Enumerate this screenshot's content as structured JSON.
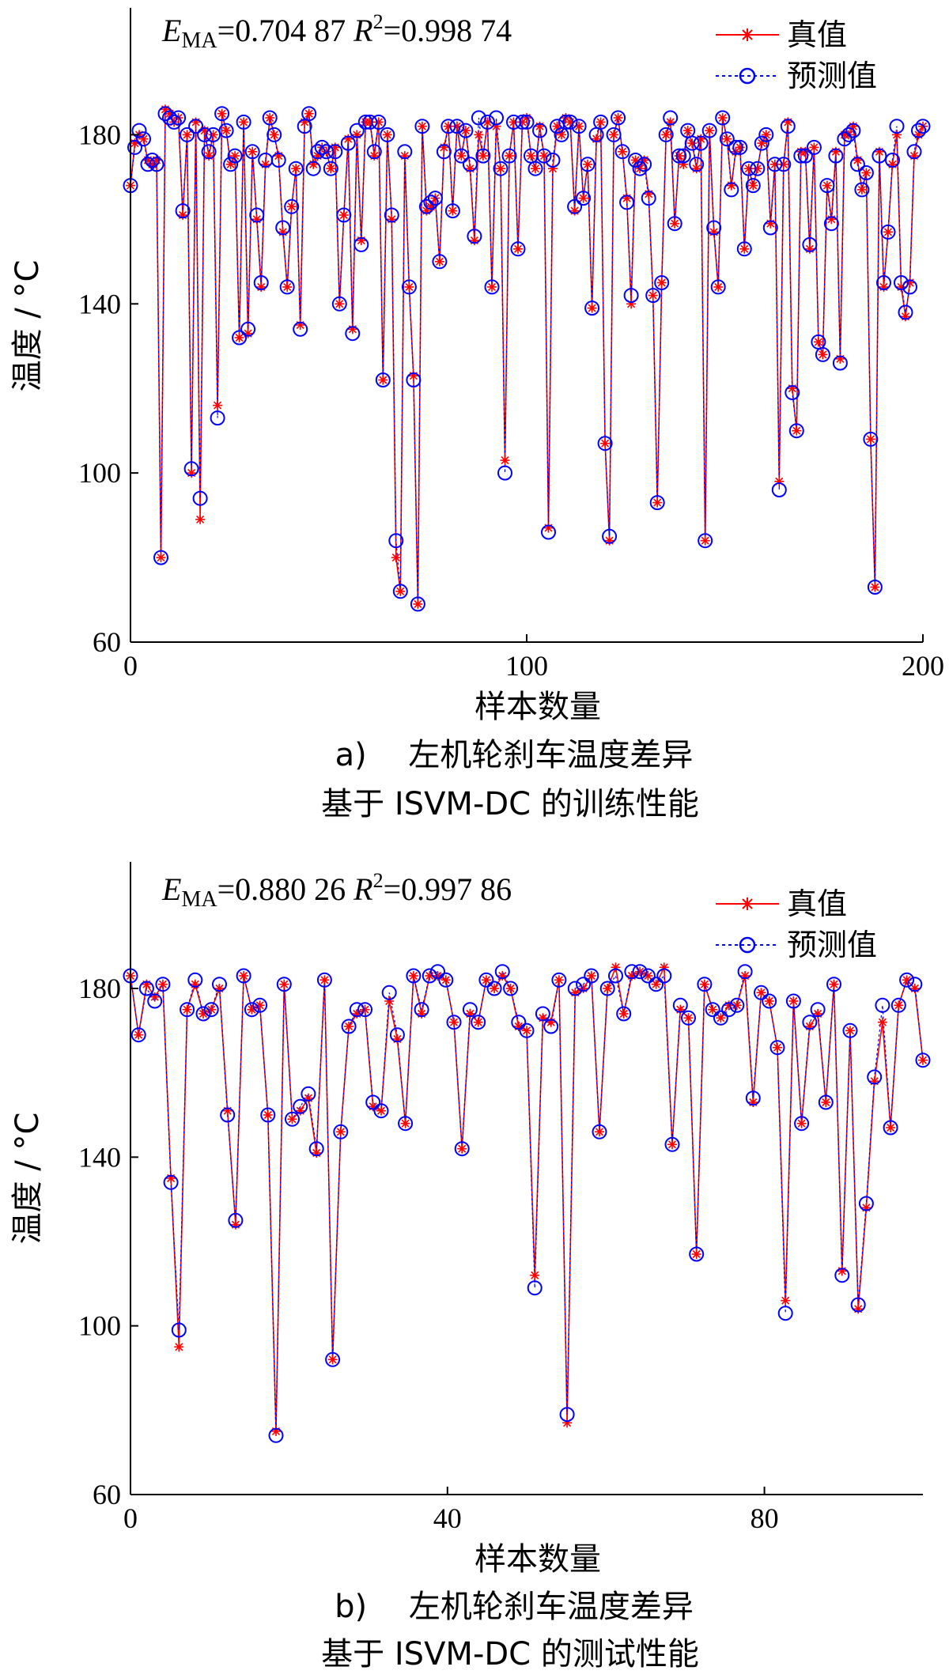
{
  "chart_data": [
    {
      "type": "line",
      "panel": "a",
      "annotation": {
        "ema_prefix": "E",
        "ema_sub": "MA",
        "ema_value": "=0.704 87",
        "r2_prefix": " R",
        "r2_sup": "2",
        "r2_value": "=0.998 74"
      },
      "xlabel": "样本数量",
      "ylabel": "温度 / °C",
      "xlim": [
        0,
        200
      ],
      "ylim": [
        60,
        210
      ],
      "xticks": [
        0,
        100,
        200
      ],
      "yticks": [
        60,
        100,
        140,
        180
      ],
      "legend": {
        "position": "top-right",
        "entries": [
          "真值",
          "预测值"
        ]
      },
      "colors": {
        "true": "#ff0000",
        "pred": "#0000ff"
      },
      "caption_line1": "a)　 左机轮刹车温度差异",
      "caption_line2": "基于 ISVM-DC 的训练性能",
      "series": [
        {
          "name": "真值",
          "values": [
            168,
            178,
            180,
            179,
            174,
            173,
            174,
            80,
            186,
            185,
            183,
            184,
            161,
            180,
            100,
            183,
            89,
            181,
            175,
            180,
            116,
            185,
            181,
            173,
            175,
            132,
            183,
            133,
            176,
            160,
            144,
            173,
            184,
            180,
            175,
            157,
            144,
            163,
            172,
            135,
            183,
            185,
            173,
            175,
            177,
            176,
            172,
            177,
            140,
            161,
            179,
            134,
            180,
            155,
            183,
            183,
            175,
            183,
            122,
            180,
            160,
            80,
            72,
            175,
            144,
            123,
            69,
            182,
            162,
            163,
            165,
            150,
            177,
            182,
            162,
            182,
            175,
            181,
            172,
            155,
            180,
            175,
            183,
            144,
            182,
            172,
            103,
            175,
            183,
            153,
            183,
            184,
            175,
            172,
            182,
            175,
            87,
            172,
            182,
            180,
            184,
            183,
            162,
            182,
            165,
            173,
            139,
            179,
            183,
            107,
            84,
            180,
            184,
            176,
            165,
            140,
            174,
            172,
            174,
            166,
            142,
            93,
            145,
            180,
            183,
            159,
            175,
            173,
            181,
            178,
            172,
            179,
            84,
            181,
            157,
            144,
            184,
            179,
            168,
            176,
            177,
            153,
            172,
            168,
            172,
            178,
            180,
            159,
            173,
            98,
            173,
            183,
            120,
            110,
            176,
            176,
            153,
            177,
            131,
            128,
            168,
            160,
            176,
            127,
            180,
            180,
            182,
            174,
            167,
            171,
            108,
            73,
            176,
            144,
            157,
            173,
            180,
            144,
            137,
            145,
            175,
            180,
            182
          ]
        },
        {
          "name": "预测值",
          "values": [
            168,
            177,
            181,
            179,
            173,
            174,
            173,
            80,
            185,
            184,
            183,
            184,
            162,
            180,
            101,
            182,
            94,
            180,
            176,
            180,
            113,
            185,
            181,
            173,
            175,
            132,
            183,
            134,
            176,
            161,
            145,
            174,
            184,
            180,
            174,
            158,
            144,
            163,
            172,
            134,
            182,
            185,
            172,
            176,
            177,
            176,
            172,
            176,
            140,
            161,
            178,
            133,
            181,
            154,
            183,
            183,
            176,
            183,
            122,
            180,
            161,
            84,
            72,
            176,
            144,
            122,
            69,
            182,
            163,
            164,
            165,
            150,
            176,
            182,
            162,
            182,
            175,
            181,
            173,
            156,
            184,
            175,
            183,
            144,
            184,
            172,
            100,
            175,
            183,
            153,
            183,
            183,
            175,
            172,
            181,
            175,
            86,
            174,
            182,
            180,
            183,
            183,
            163,
            182,
            165,
            173,
            139,
            180,
            183,
            107,
            85,
            180,
            184,
            176,
            164,
            142,
            174,
            172,
            173,
            165,
            142,
            93,
            145,
            180,
            184,
            159,
            175,
            175,
            181,
            178,
            173,
            178,
            84,
            181,
            158,
            144,
            184,
            179,
            167,
            177,
            177,
            153,
            172,
            168,
            172,
            178,
            180,
            158,
            173,
            96,
            173,
            182,
            119,
            110,
            175,
            175,
            154,
            177,
            131,
            128,
            168,
            159,
            175,
            126,
            179,
            180,
            181,
            173,
            167,
            171,
            108,
            73,
            175,
            145,
            157,
            174,
            182,
            145,
            138,
            144,
            176,
            181,
            182
          ]
        }
      ]
    },
    {
      "type": "line",
      "panel": "b",
      "annotation": {
        "ema_prefix": "E",
        "ema_sub": "MA",
        "ema_value": "=0.880 26",
        "r2_prefix": " R",
        "r2_sup": "2",
        "r2_value": "=0.997 86"
      },
      "xlabel": "样本数量",
      "ylabel": "温度 / °C",
      "xlim": [
        0,
        100
      ],
      "ylim": [
        60,
        210
      ],
      "xticks": [
        0,
        40,
        80
      ],
      "yticks": [
        60,
        100,
        140,
        180
      ],
      "legend": {
        "position": "top-right",
        "entries": [
          "真值",
          "预测值"
        ]
      },
      "colors": {
        "true": "#ff0000",
        "pred": "#0000ff"
      },
      "caption_line1": "b)　 左机轮刹车温度差异",
      "caption_line2": "基于 ISVM-DC 的测试性能",
      "series": [
        {
          "name": "真值",
          "values": [
            183,
            169,
            181,
            178,
            181,
            135,
            95,
            175,
            181,
            174,
            175,
            180,
            151,
            124,
            183,
            175,
            176,
            150,
            75,
            181,
            149,
            151,
            154,
            141,
            182,
            92,
            146,
            171,
            174,
            175,
            152,
            151,
            177,
            168,
            148,
            183,
            174,
            183,
            183,
            182,
            172,
            142,
            174,
            172,
            182,
            180,
            183,
            180,
            171,
            170,
            112,
            173,
            172,
            182,
            77,
            179,
            180,
            183,
            146,
            180,
            185,
            174,
            183,
            184,
            183,
            181,
            185,
            143,
            175,
            173,
            117,
            181,
            175,
            173,
            176,
            176,
            183,
            153,
            179,
            177,
            166,
            106,
            177,
            148,
            171,
            174,
            153,
            181,
            113,
            170,
            104,
            128,
            158,
            172,
            147,
            176,
            182,
            180,
            163
          ]
        },
        {
          "name": "预测值",
          "values": [
            183,
            169,
            180,
            177,
            181,
            134,
            99,
            175,
            182,
            174,
            175,
            181,
            150,
            125,
            183,
            175,
            176,
            150,
            74,
            181,
            149,
            152,
            155,
            142,
            182,
            92,
            146,
            171,
            175,
            175,
            153,
            151,
            179,
            169,
            148,
            183,
            175,
            183,
            184,
            182,
            172,
            142,
            175,
            172,
            182,
            180,
            184,
            180,
            172,
            170,
            109,
            174,
            171,
            182,
            79,
            180,
            181,
            183,
            146,
            180,
            183,
            174,
            184,
            184,
            183,
            181,
            183,
            143,
            176,
            173,
            117,
            181,
            175,
            173,
            175,
            176,
            184,
            154,
            179,
            177,
            166,
            103,
            177,
            148,
            172,
            175,
            153,
            181,
            112,
            170,
            105,
            129,
            159,
            176,
            147,
            176,
            182,
            181,
            163
          ]
        }
      ]
    }
  ]
}
